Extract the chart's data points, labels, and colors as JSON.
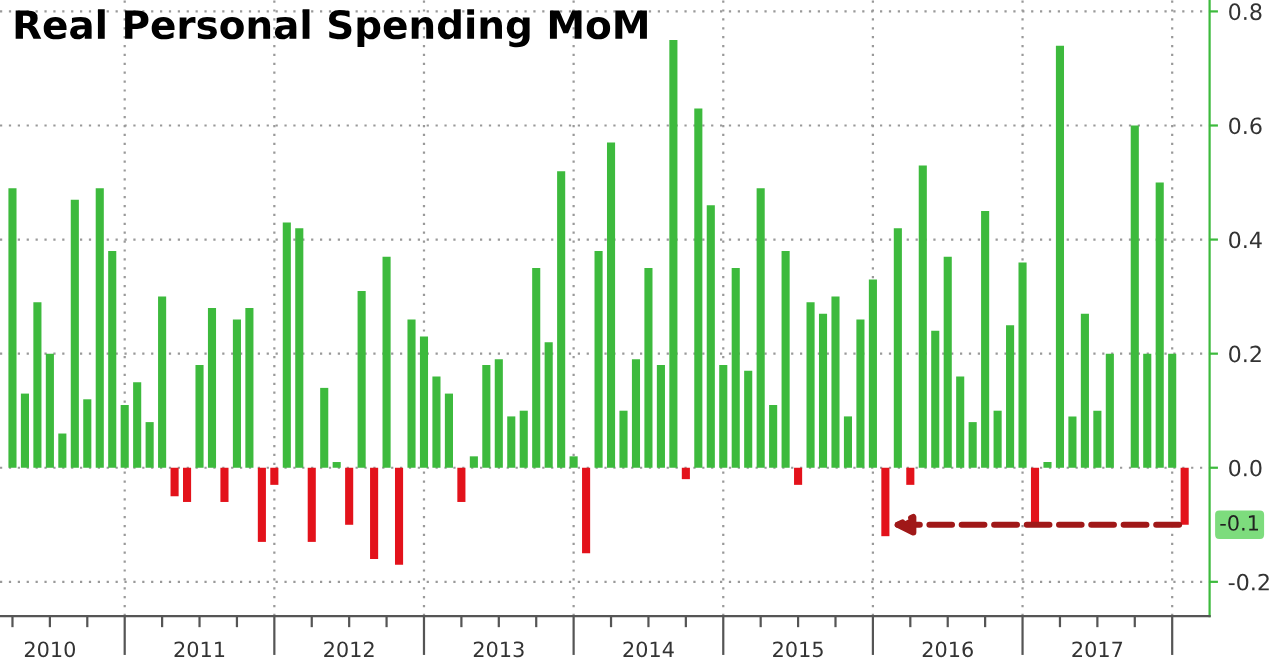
{
  "chart_data": {
    "type": "bar",
    "title": "Real Personal Spending MoM",
    "x": [
      "2010-04",
      "2010-05",
      "2010-06",
      "2010-07",
      "2010-08",
      "2010-09",
      "2010-10",
      "2010-11",
      "2010-12",
      "2011-01",
      "2011-02",
      "2011-03",
      "2011-04",
      "2011-05",
      "2011-06",
      "2011-07",
      "2011-08",
      "2011-09",
      "2011-10",
      "2011-11",
      "2011-12",
      "2012-01",
      "2012-02",
      "2012-03",
      "2012-04",
      "2012-05",
      "2012-06",
      "2012-07",
      "2012-08",
      "2012-09",
      "2012-10",
      "2012-11",
      "2012-12",
      "2013-01",
      "2013-02",
      "2013-03",
      "2013-04",
      "2013-05",
      "2013-06",
      "2013-07",
      "2013-08",
      "2013-09",
      "2013-10",
      "2013-11",
      "2013-12",
      "2014-01",
      "2014-02",
      "2014-03",
      "2014-04",
      "2014-05",
      "2014-06",
      "2014-07",
      "2014-08",
      "2014-09",
      "2014-10",
      "2014-11",
      "2014-12",
      "2015-01",
      "2015-02",
      "2015-03",
      "2015-04",
      "2015-05",
      "2015-06",
      "2015-07",
      "2015-08",
      "2015-09",
      "2015-10",
      "2015-11",
      "2015-12",
      "2016-01",
      "2016-02",
      "2016-03",
      "2016-04",
      "2016-05",
      "2016-06",
      "2016-07",
      "2016-08",
      "2016-09",
      "2016-10",
      "2016-11",
      "2016-12",
      "2017-01",
      "2017-02",
      "2017-03",
      "2017-04",
      "2017-05",
      "2017-06",
      "2017-07",
      "2017-08",
      "2017-09",
      "2017-10",
      "2017-11",
      "2017-12",
      "2018-01",
      "2018-02"
    ],
    "values": [
      0.49,
      0.13,
      0.29,
      0.2,
      0.06,
      0.47,
      0.12,
      0.49,
      0.38,
      0.11,
      0.15,
      0.08,
      0.3,
      -0.05,
      -0.06,
      0.18,
      0.28,
      -0.06,
      0.26,
      0.28,
      -0.13,
      -0.03,
      0.43,
      0.42,
      -0.13,
      0.14,
      0.01,
      -0.1,
      0.31,
      -0.16,
      0.37,
      -0.17,
      0.26,
      0.23,
      0.16,
      0.13,
      -0.06,
      0.02,
      0.18,
      0.19,
      0.09,
      0.1,
      0.35,
      0.22,
      0.52,
      0.02,
      -0.15,
      0.38,
      0.57,
      0.1,
      0.19,
      0.35,
      0.18,
      0.75,
      -0.02,
      0.63,
      0.46,
      0.18,
      0.35,
      0.17,
      0.49,
      0.11,
      0.38,
      -0.03,
      0.29,
      0.27,
      0.3,
      0.09,
      0.26,
      0.33,
      -0.12,
      0.42,
      -0.03,
      0.53,
      0.24,
      0.37,
      0.16,
      0.08,
      0.45,
      0.1,
      0.25,
      0.36,
      -0.1,
      0.01,
      0.74,
      0.09,
      0.27,
      0.1,
      0.2,
      0.0,
      0.6,
      0.2,
      0.5,
      0.2,
      -0.1
    ],
    "colors": [
      "#3dba3d",
      "#3dba3d",
      "#3dba3d",
      "#3dba3d",
      "#3dba3d",
      "#3dba3d",
      "#3dba3d",
      "#3dba3d",
      "#3dba3d",
      "#3dba3d",
      "#3dba3d",
      "#3dba3d",
      "#3dba3d",
      "#e3121b",
      "#e3121b",
      "#3dba3d",
      "#3dba3d",
      "#e3121b",
      "#3dba3d",
      "#3dba3d",
      "#e3121b",
      "#e3121b",
      "#3dba3d",
      "#3dba3d",
      "#e3121b",
      "#3dba3d",
      "#3dba3d",
      "#e3121b",
      "#3dba3d",
      "#e3121b",
      "#3dba3d",
      "#e3121b",
      "#3dba3d",
      "#3dba3d",
      "#3dba3d",
      "#3dba3d",
      "#e3121b",
      "#3dba3d",
      "#3dba3d",
      "#3dba3d",
      "#3dba3d",
      "#3dba3d",
      "#3dba3d",
      "#3dba3d",
      "#3dba3d",
      "#3dba3d",
      "#e3121b",
      "#3dba3d",
      "#3dba3d",
      "#3dba3d",
      "#3dba3d",
      "#3dba3d",
      "#3dba3d",
      "#3dba3d",
      "#e3121b",
      "#3dba3d",
      "#3dba3d",
      "#3dba3d",
      "#3dba3d",
      "#3dba3d",
      "#3dba3d",
      "#3dba3d",
      "#3dba3d",
      "#e3121b",
      "#3dba3d",
      "#3dba3d",
      "#3dba3d",
      "#3dba3d",
      "#3dba3d",
      "#3dba3d",
      "#e3121b",
      "#3dba3d",
      "#e3121b",
      "#3dba3d",
      "#3dba3d",
      "#3dba3d",
      "#3dba3d",
      "#3dba3d",
      "#3dba3d",
      "#3dba3d",
      "#3dba3d",
      "#3dba3d",
      "#e3121b",
      "#3dba3d",
      "#3dba3d",
      "#3dba3d",
      "#3dba3d",
      "#3dba3d",
      "#3dba3d",
      "#3dba3d",
      "#3dba3d",
      "#3dba3d",
      "#3dba3d",
      "#3dba3d",
      "#e3121b"
    ],
    "xlim": [
      "2010-03",
      "2018-04"
    ],
    "xticks": [
      {
        "value": "2010-04",
        "label": null
      },
      {
        "value": "2010-07",
        "label": "2010"
      },
      {
        "value": "2010-10",
        "label": null
      },
      {
        "value": "2011-01",
        "label": null
      },
      {
        "value": "2011-04",
        "label": null
      },
      {
        "value": "2011-07",
        "label": "2011"
      },
      {
        "value": "2011-10",
        "label": null
      },
      {
        "value": "2012-01",
        "label": null
      },
      {
        "value": "2012-04",
        "label": null
      },
      {
        "value": "2012-07",
        "label": "2012"
      },
      {
        "value": "2012-10",
        "label": null
      },
      {
        "value": "2013-01",
        "label": null
      },
      {
        "value": "2013-04",
        "label": null
      },
      {
        "value": "2013-07",
        "label": "2013"
      },
      {
        "value": "2013-10",
        "label": null
      },
      {
        "value": "2014-01",
        "label": null
      },
      {
        "value": "2014-04",
        "label": null
      },
      {
        "value": "2014-07",
        "label": "2014"
      },
      {
        "value": "2014-10",
        "label": null
      },
      {
        "value": "2015-01",
        "label": null
      },
      {
        "value": "2015-04",
        "label": null
      },
      {
        "value": "2015-07",
        "label": "2015"
      },
      {
        "value": "2015-10",
        "label": null
      },
      {
        "value": "2016-01",
        "label": null
      },
      {
        "value": "2016-04",
        "label": null
      },
      {
        "value": "2016-07",
        "label": "2016"
      },
      {
        "value": "2016-10",
        "label": null
      },
      {
        "value": "2017-01",
        "label": null
      },
      {
        "value": "2017-04",
        "label": null
      },
      {
        "value": "2017-07",
        "label": "2017"
      },
      {
        "value": "2017-10",
        "label": null
      },
      {
        "value": "2018-01",
        "label": null
      }
    ],
    "ylim": [
      -0.26,
      0.82
    ],
    "yticks": [
      -0.2,
      {
        "value": 0.0,
        "label": "0.0"
      },
      0.2,
      0.4,
      0.6,
      0.8
    ],
    "grid": true,
    "annotations": [
      {
        "text": "-0.1",
        "x": "2018-02",
        "y": -0.1
      }
    ]
  }
}
